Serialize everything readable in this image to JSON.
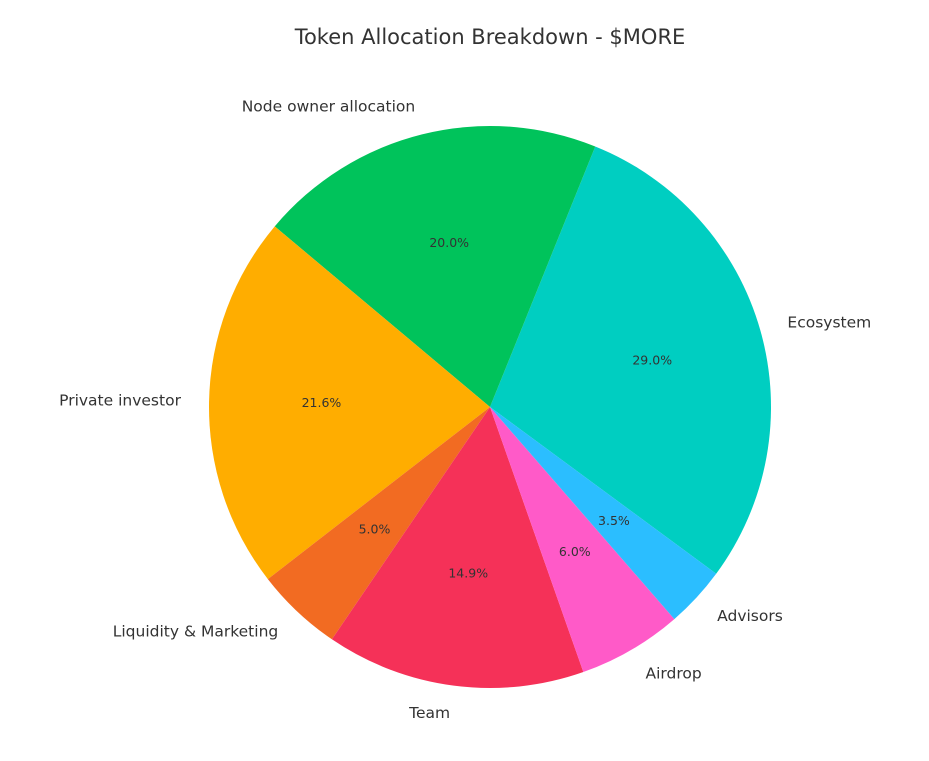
{
  "chart_data": {
    "type": "pie",
    "title": "Token Allocation Breakdown - $MORE",
    "series": [
      {
        "categories": [
          "Ecosystem",
          "Node owner allocation",
          "Private investor",
          "Liquidity & Marketing",
          "Team",
          "Airdrop",
          "Advisors"
        ],
        "values": [
          29.0,
          20.0,
          21.6,
          5.0,
          14.9,
          6.0,
          3.5
        ],
        "value_labels": [
          "29.0%",
          "20.0%",
          "21.6%",
          "5.0%",
          "14.9%",
          "6.0%",
          "3.5%"
        ],
        "colors": [
          "#00cec1",
          "#00c35b",
          "#ffad00",
          "#f26b22",
          "#f53158",
          "#ff5ac8",
          "#2bbeff"
        ]
      }
    ]
  }
}
